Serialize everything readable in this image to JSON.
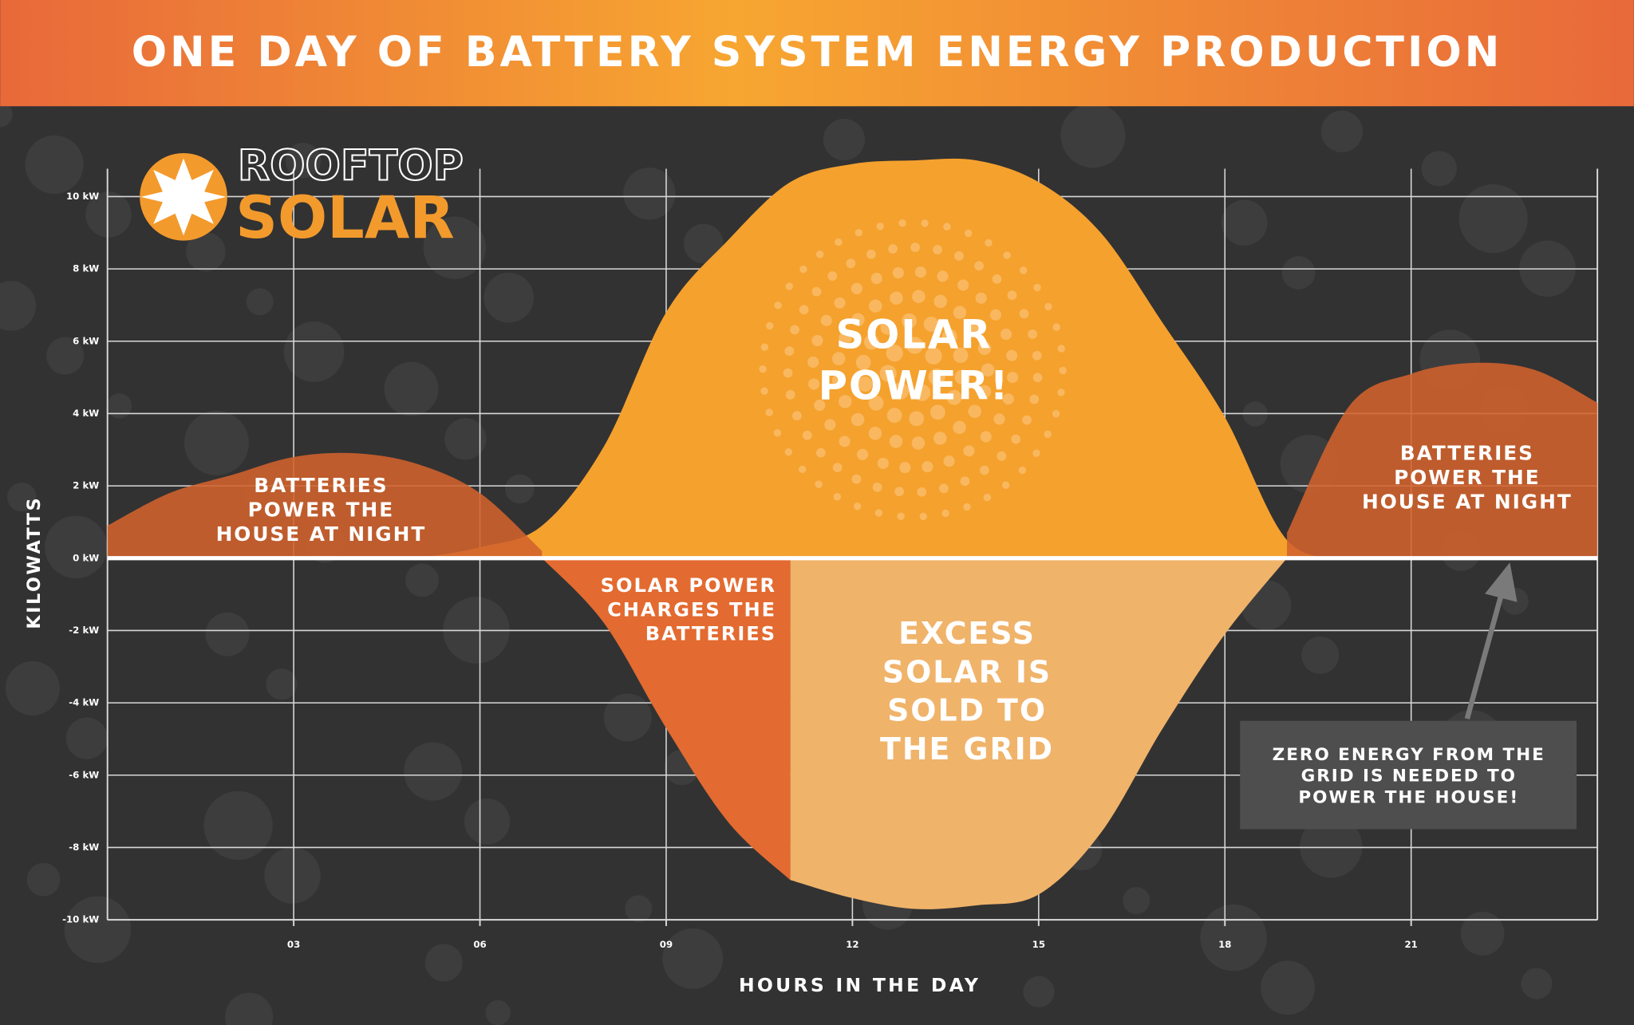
{
  "logo": {
    "line1": "ROOFTOP",
    "line2": "SOLAR"
  },
  "chart_data": {
    "type": "area",
    "title": "ONE DAY OF BATTERY SYSTEM ENERGY PRODUCTION",
    "x_label": "HOURS IN THE DAY",
    "y_label": "KILOWATTS",
    "x": [
      0,
      1,
      2,
      3,
      4,
      5,
      6,
      7,
      8,
      9,
      10,
      11,
      12,
      13,
      14,
      15,
      16,
      17,
      18,
      19,
      20,
      21,
      22,
      23,
      24
    ],
    "series": [
      {
        "color": "#f5a12e",
        "values": [
          null,
          null,
          null,
          null,
          null,
          0,
          0.3,
          0.9,
          3.1,
          6.8,
          8.8,
          10.4,
          10.9,
          11,
          11,
          10.4,
          9,
          6.5,
          3.9,
          0.5,
          0,
          null,
          null,
          null,
          null
        ]
      },
      {
        "color": "#d2622c",
        "values": [
          0.9,
          1.8,
          2.3,
          2.8,
          2.9,
          2.6,
          1.8,
          0.2,
          null,
          null,
          null,
          null,
          null,
          null,
          null,
          null,
          null,
          null,
          null,
          0.7,
          4.2,
          5.1,
          5.4,
          5.2,
          4.3
        ]
      },
      {
        "color": "#e36a30",
        "values": [
          null,
          null,
          null,
          null,
          null,
          null,
          null,
          0,
          -1.8,
          -4.7,
          -7.3,
          -8.9,
          null,
          null,
          null,
          null,
          null,
          null,
          null,
          null,
          null,
          null,
          null,
          null,
          null
        ]
      },
      {
        "color": "#f0b36a",
        "values": [
          null,
          null,
          null,
          null,
          null,
          null,
          null,
          null,
          null,
          null,
          null,
          -8.9,
          -9.4,
          -9.7,
          -9.6,
          -9.3,
          -7.6,
          -4.7,
          -2.1,
          0,
          null,
          null,
          null,
          null,
          null
        ]
      }
    ],
    "xlim": [
      0,
      24
    ],
    "ylim": [
      -10,
      11
    ],
    "xticks": [
      {
        "value": 3,
        "label": "03"
      },
      {
        "value": 6,
        "label": "06"
      },
      {
        "value": 9,
        "label": "09"
      },
      {
        "value": 12,
        "label": "12"
      },
      {
        "value": 15,
        "label": "15"
      },
      {
        "value": 18,
        "label": "18"
      },
      {
        "value": 21,
        "label": "21"
      }
    ],
    "yticks": [
      {
        "value": -10,
        "label": "-10 kW"
      },
      {
        "value": -8,
        "label": "-8 kW"
      },
      {
        "value": -6,
        "label": "-6 kW"
      },
      {
        "value": -4,
        "label": "-4 kW"
      },
      {
        "value": -2,
        "label": "-2 kW"
      },
      {
        "value": 0,
        "label": "0 kW"
      },
      {
        "value": 2,
        "label": "2 kW"
      },
      {
        "value": 4,
        "label": "4 kW"
      },
      {
        "value": 6,
        "label": "6 kW"
      },
      {
        "value": 8,
        "label": "8 kW"
      },
      {
        "value": 10,
        "label": "10 kW"
      }
    ],
    "grid": true,
    "annotations": [
      {
        "lines": [
          "BATTERIES",
          "POWER THE",
          "HOUSE AT NIGHT"
        ]
      },
      {
        "lines": [
          "SOLAR",
          "POWER!"
        ]
      },
      {
        "lines": [
          "SOLAR POWER",
          "CHARGES THE",
          "BATTERIES"
        ]
      },
      {
        "lines": [
          "EXCESS",
          "SOLAR IS",
          "SOLD TO",
          "THE GRID"
        ]
      },
      {
        "lines": [
          "BATTERIES",
          "POWER THE",
          "HOUSE AT NIGHT"
        ]
      },
      {
        "lines": [
          "ZERO ENERGY FROM THE",
          "GRID IS NEEDED TO",
          "POWER THE HOUSE!"
        ]
      }
    ]
  }
}
